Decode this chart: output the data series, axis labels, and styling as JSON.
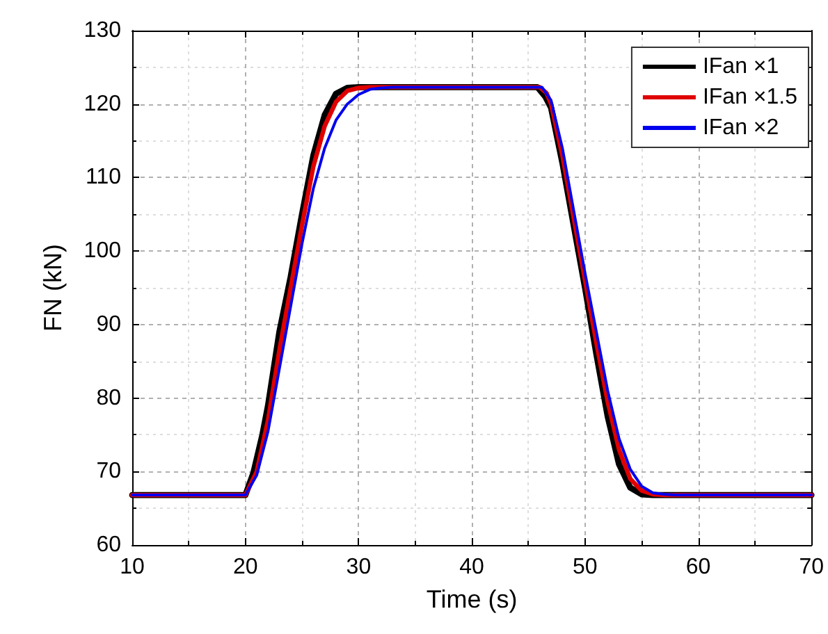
{
  "chart_data": {
    "type": "line",
    "xlabel": "Time (s)",
    "ylabel": "FN (kN)",
    "xlim": [
      10,
      70
    ],
    "xticks": [
      10,
      20,
      30,
      40,
      50,
      60,
      70
    ],
    "ylim": [
      60,
      130
    ],
    "yticks": [
      60,
      70,
      80,
      90,
      100,
      110,
      120,
      130
    ],
    "grid": true,
    "legend": "top right",
    "marker": "none",
    "line_style": "solid",
    "series": [
      {
        "name": "IFan ×1",
        "color": "#000000",
        "x": [
          10,
          20,
          20.7,
          21.5,
          22,
          23,
          24,
          25,
          26,
          27,
          28,
          29,
          30,
          45.8,
          46.5,
          47,
          48,
          49,
          50,
          51,
          52,
          53,
          54,
          55,
          56,
          70
        ],
        "values": [
          66.8,
          66.8,
          69.8,
          75,
          79,
          89,
          96.5,
          105,
          113,
          118.5,
          121.4,
          122.2,
          122.3,
          122.3,
          121,
          119.5,
          112,
          103.5,
          95,
          86,
          77.5,
          71,
          67.8,
          66.9,
          66.8,
          66.8
        ]
      },
      {
        "name": "IFan ×1.5",
        "color": "#e00000",
        "x": [
          10,
          20,
          21,
          22,
          23,
          24,
          25,
          26,
          27,
          28,
          29,
          30,
          31,
          46,
          46.6,
          47,
          48,
          49,
          50,
          51,
          52,
          53,
          54,
          55,
          56,
          57,
          70
        ],
        "values": [
          66.8,
          66.8,
          70,
          77,
          86.5,
          95,
          103.5,
          111.5,
          117,
          120.3,
          121.8,
          122.2,
          122.3,
          122.3,
          121.5,
          120,
          113,
          104.5,
          96,
          87.5,
          79.5,
          73,
          69,
          67.4,
          66.9,
          66.8,
          66.8
        ]
      },
      {
        "name": "IFan ×2",
        "color": "#0000ee",
        "x": [
          10,
          20,
          21,
          22,
          23,
          24,
          25,
          26,
          27,
          28,
          29,
          30,
          31,
          32,
          33,
          46.2,
          47,
          48,
          49,
          50,
          51,
          52,
          53,
          54,
          55,
          56,
          57,
          58,
          70
        ],
        "values": [
          66.8,
          66.8,
          69.5,
          75.5,
          84,
          92.5,
          101,
          108.5,
          114,
          117.8,
          120,
          121.3,
          122,
          122.2,
          122.3,
          122.3,
          120.5,
          114,
          105.5,
          97,
          89,
          81,
          74.5,
          70.3,
          68,
          67.1,
          66.9,
          66.8,
          66.8
        ]
      }
    ]
  }
}
